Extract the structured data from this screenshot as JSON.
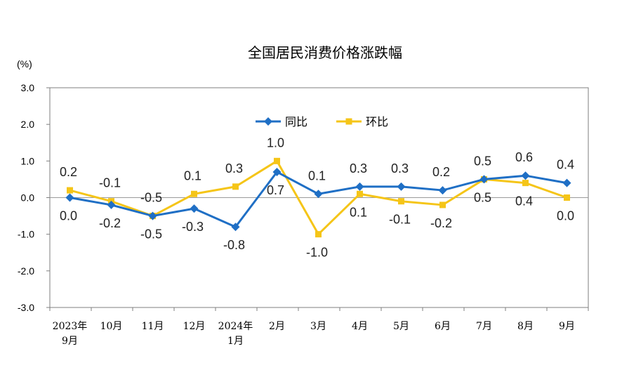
{
  "chart_data": {
    "type": "line",
    "title": "全国居民消费价格涨跌幅",
    "ylabel": "(%)",
    "ylim": [
      -3.0,
      3.0
    ],
    "yticks": [
      "3.0",
      "2.0",
      "1.0",
      "0.0",
      "-1.0",
      "-2.0",
      "-3.0"
    ],
    "categories": [
      [
        "2023年",
        "9月"
      ],
      [
        "10月"
      ],
      [
        "11月"
      ],
      [
        "12月"
      ],
      [
        "2024年",
        "1月"
      ],
      [
        "2月"
      ],
      [
        "3月"
      ],
      [
        "4月"
      ],
      [
        "5月"
      ],
      [
        "6月"
      ],
      [
        "7月"
      ],
      [
        "8月"
      ],
      [
        "9月"
      ]
    ],
    "legend_position": "top-center",
    "grid": false,
    "series": [
      {
        "name": "同比",
        "color": "#1f6fc5",
        "marker": "diamond",
        "values": [
          0.0,
          -0.2,
          -0.5,
          -0.3,
          -0.8,
          0.7,
          0.1,
          0.3,
          0.3,
          0.2,
          0.5,
          0.6,
          0.4
        ],
        "labels": [
          "0.0",
          "-0.2",
          "-0.5",
          "-0.3",
          "-0.8",
          "0.7",
          "0.1",
          "0.3",
          "0.3",
          "0.2",
          "0.5",
          "0.6",
          "0.4"
        ]
      },
      {
        "name": "环比",
        "color": "#f5c518",
        "marker": "square",
        "values": [
          0.2,
          -0.1,
          -0.5,
          0.1,
          0.3,
          1.0,
          -1.0,
          0.1,
          -0.1,
          -0.2,
          0.5,
          0.4,
          0.0
        ],
        "labels": [
          "0.2",
          "-0.1",
          "-0.5",
          "0.1",
          "0.3",
          "1.0",
          "-1.0",
          "0.1",
          "-0.1",
          "-0.2",
          "0.5",
          "0.4",
          "0.0"
        ]
      }
    ]
  }
}
